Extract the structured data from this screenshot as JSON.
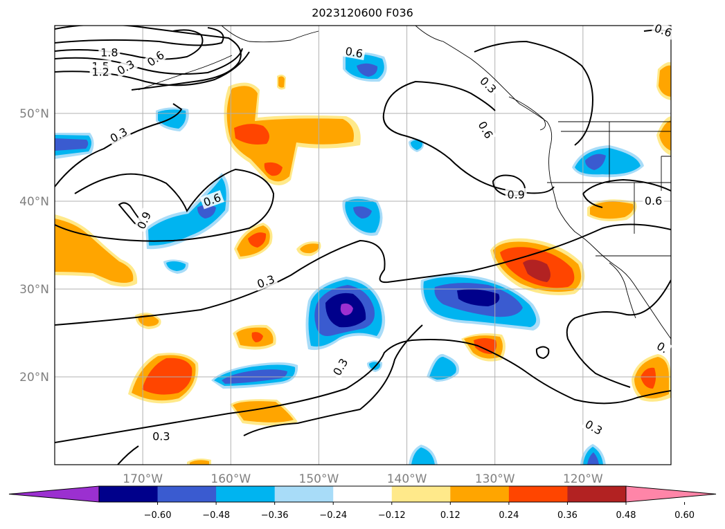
{
  "title": "2023120600 F036",
  "map": {
    "projection": "lat-lon",
    "lon_range": [
      -180,
      -110
    ],
    "lat_range": [
      10,
      60
    ],
    "lon_ticks": [
      {
        "value": -170,
        "label": "170°W"
      },
      {
        "value": -160,
        "label": "160°W"
      },
      {
        "value": -150,
        "label": "150°W"
      },
      {
        "value": -140,
        "label": "140°W"
      },
      {
        "value": -130,
        "label": "130°W"
      },
      {
        "value": -120,
        "label": "120°W"
      }
    ],
    "lat_ticks": [
      {
        "value": 50,
        "label": "50°N"
      },
      {
        "value": 40,
        "label": "40°N"
      },
      {
        "value": 30,
        "label": "30°N"
      },
      {
        "value": 20,
        "label": "20°N"
      }
    ],
    "grid": true,
    "coastlines": true
  },
  "colorbar": {
    "extend": "both",
    "colors": [
      "#9b30d0",
      "#00008b",
      "#3a5bd0",
      "#00b4f0",
      "#a8dcf8",
      "#ffffff",
      "#ffe98a",
      "#ffa500",
      "#ff4500",
      "#b22222",
      "#ff85a8"
    ],
    "tick_labels": [
      "−0.60",
      "−0.48",
      "−0.36",
      "−0.24",
      "−0.12",
      "0.12",
      "0.24",
      "0.36",
      "0.48",
      "0.60"
    ]
  },
  "contour_labels": [
    {
      "text": "1.8",
      "lon": -173.8,
      "lat": 56.9,
      "angle": 0
    },
    {
      "text": "1.5",
      "lon": -174.8,
      "lat": 55.3,
      "angle": 0
    },
    {
      "text": "1.2",
      "lon": -174.8,
      "lat": 54.7,
      "angle": 0
    },
    {
      "text": "0.3",
      "lon": -171.9,
      "lat": 55.2,
      "angle": -30
    },
    {
      "text": "0.6",
      "lon": -168.5,
      "lat": 56.2,
      "angle": -35
    },
    {
      "text": "0.6",
      "lon": -146.0,
      "lat": 56.9,
      "angle": 10
    },
    {
      "text": "0.3",
      "lon": -130.8,
      "lat": 53.2,
      "angle": 45
    },
    {
      "text": "0.6",
      "lon": -110.9,
      "lat": 59.4,
      "angle": 20
    },
    {
      "text": "0.3",
      "lon": -172.7,
      "lat": 47.5,
      "angle": -30
    },
    {
      "text": "0.6",
      "lon": -131.1,
      "lat": 48.1,
      "angle": 60
    },
    {
      "text": "0.6",
      "lon": -162.1,
      "lat": 40.1,
      "angle": -20
    },
    {
      "text": "0.9",
      "lon": -169.8,
      "lat": 37.8,
      "angle": -65
    },
    {
      "text": "0.9",
      "lon": -127.6,
      "lat": 40.7,
      "angle": 0
    },
    {
      "text": "0.6",
      "lon": -112.0,
      "lat": 40.0,
      "angle": 0
    },
    {
      "text": "0.3",
      "lon": -156.0,
      "lat": 30.8,
      "angle": -20
    },
    {
      "text": "0.3",
      "lon": -147.5,
      "lat": 21.1,
      "angle": -60
    },
    {
      "text": "0.3",
      "lon": -118.8,
      "lat": 14.2,
      "angle": 30
    },
    {
      "text": "0.3",
      "lon": -167.9,
      "lat": 13.2,
      "angle": 0
    },
    {
      "text": "0.",
      "lon": -111.0,
      "lat": 23.3,
      "angle": 30
    }
  ]
}
